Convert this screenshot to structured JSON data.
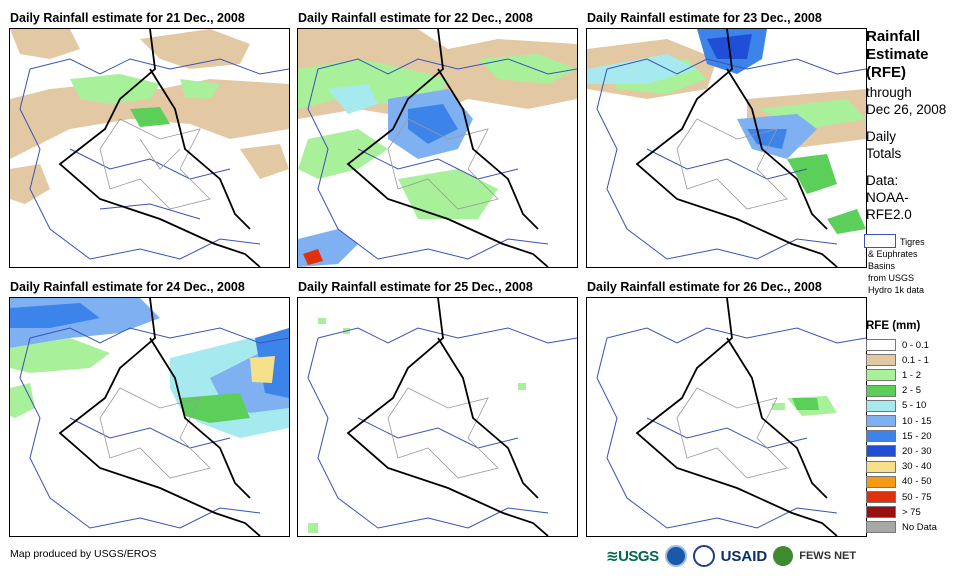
{
  "panels": [
    {
      "title": "Daily Rainfall estimate for 21 Dec., 2008"
    },
    {
      "title": "Daily Rainfall estimate for 22 Dec., 2008"
    },
    {
      "title": "Daily Rainfall estimate for 23 Dec., 2008"
    },
    {
      "title": "Daily Rainfall estimate for 24 Dec., 2008"
    },
    {
      "title": "Daily Rainfall estimate for 25 Dec., 2008"
    },
    {
      "title": "Daily Rainfall estimate for 26 Dec., 2008"
    }
  ],
  "legend": {
    "heading_lines": [
      "Rainfall",
      "Estimate",
      "(RFE)"
    ],
    "through_lines": [
      "through",
      "Dec 26, 2008"
    ],
    "totals_lines": [
      "Daily",
      "Totals"
    ],
    "data_lines": [
      "Data:",
      "NOAA-",
      "RFE2.0"
    ],
    "basin_lines": [
      "Tigres",
      "& Euphrates",
      "Basins",
      "from USGS",
      "Hydro 1k data"
    ],
    "rfe_title": "RFE (mm)",
    "classes": [
      {
        "label": "0 - 0.1",
        "color": "#ffffff"
      },
      {
        "label": "0.1 - 1",
        "color": "#e3c9a3"
      },
      {
        "label": "1 - 2",
        "color": "#a9f09a"
      },
      {
        "label": "2 - 5",
        "color": "#5ccf5a"
      },
      {
        "label": "5 - 10",
        "color": "#a6eaf0"
      },
      {
        "label": "10 - 15",
        "color": "#7fb1f2"
      },
      {
        "label": "15 - 20",
        "color": "#3d84ea"
      },
      {
        "label": "20 - 30",
        "color": "#1f4fd6"
      },
      {
        "label": "30 - 40",
        "color": "#f6e08a"
      },
      {
        "label": "40 - 50",
        "color": "#f39a18"
      },
      {
        "label": "50 - 75",
        "color": "#e0300c"
      },
      {
        "label": "> 75",
        "color": "#9a1010"
      },
      {
        "label": "No Data",
        "color": "#a8a8a8"
      }
    ]
  },
  "footer": {
    "credit": "Map produced by USGS/EROS",
    "logos": {
      "usgs": "≋USGS",
      "usaid": "USAID",
      "fews": "FEWS NET"
    }
  },
  "colors": {
    "basin_line": "#3a52b5",
    "border_line": "#000000",
    "province_line": "#999999"
  }
}
